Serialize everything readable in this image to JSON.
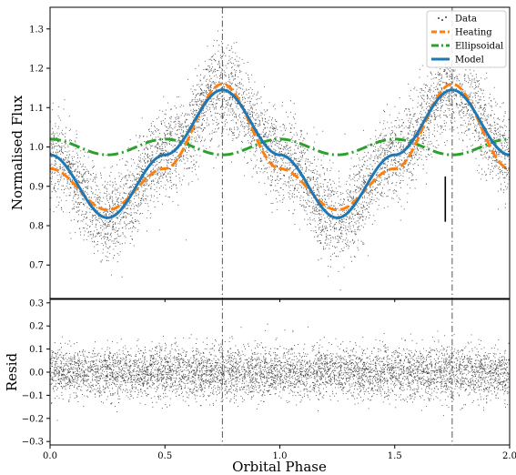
{
  "chart_data": [
    {
      "panel": "upper",
      "type": "scatter",
      "xlabel": "",
      "ylabel": "Normalised Flux",
      "xlim": [
        0.0,
        2.0
      ],
      "ylim": [
        0.615,
        1.355
      ],
      "x_ticks": [
        "0.0",
        "0.5",
        "1.0",
        "1.5",
        "2.0"
      ],
      "x_tick_labels_visible": false,
      "y_ticks": [
        "0.7",
        "0.8",
        "0.9",
        "1.0",
        "1.1",
        "1.2",
        "1.3"
      ],
      "legend": {
        "placement": "top-right",
        "entries": [
          {
            "label": "Data",
            "style": "points",
            "color": "#000000"
          },
          {
            "label": "Heating",
            "style": "dashed",
            "color": "#ff7f0e"
          },
          {
            "label": "Ellipsoidal",
            "style": "dashdot",
            "color": "#2ca02c"
          },
          {
            "label": "Model",
            "style": "solid",
            "color": "#1f77b4"
          }
        ]
      },
      "series": [
        {
          "name": "Data",
          "kind": "points",
          "color": "#000000",
          "description_curve": "scatter around Model with sigma 0.055",
          "x": [
            0.0,
            0.25,
            0.5,
            0.75,
            1.0,
            1.25,
            1.5,
            1.75,
            2.0
          ],
          "y": [
            0.98,
            0.82,
            0.98,
            1.145,
            0.98,
            0.82,
            0.98,
            1.145,
            0.98
          ]
        },
        {
          "name": "Heating",
          "kind": "line",
          "linestyle": "dashed",
          "color": "#ff7f0e",
          "x": [
            0.0,
            0.25,
            0.5,
            0.75,
            1.0,
            1.25,
            1.5,
            1.75,
            2.0
          ],
          "y": [
            0.945,
            0.84,
            0.945,
            1.16,
            0.945,
            0.84,
            0.945,
            1.16,
            0.945
          ]
        },
        {
          "name": "Ellipsoidal",
          "kind": "line",
          "linestyle": "dashdot",
          "color": "#2ca02c",
          "x": [
            0.0,
            0.25,
            0.5,
            0.75,
            1.0,
            1.25,
            1.5,
            1.75,
            2.0
          ],
          "y": [
            1.02,
            0.98,
            1.02,
            0.98,
            1.02,
            0.98,
            1.02,
            0.98,
            1.02
          ]
        },
        {
          "name": "Model",
          "kind": "line",
          "linestyle": "solid",
          "color": "#1f77b4",
          "x": [
            0.0,
            0.25,
            0.5,
            0.75,
            1.0,
            1.25,
            1.5,
            1.75,
            2.0
          ],
          "y": [
            0.98,
            0.82,
            0.98,
            1.145,
            0.98,
            0.82,
            0.98,
            1.145,
            0.98
          ]
        }
      ],
      "vertical_lines": [
        {
          "x": 0.75,
          "linestyle": "dashdot",
          "color": "#555555"
        },
        {
          "x": 1.75,
          "linestyle": "dashdot",
          "color": "#555555"
        }
      ],
      "error_bar": {
        "x": 1.72,
        "y_low": 0.81,
        "y_high": 0.925,
        "color": "#000000"
      }
    },
    {
      "panel": "lower",
      "type": "scatter",
      "xlabel": "Orbital Phase",
      "ylabel": "Resid",
      "xlim": [
        0.0,
        2.0
      ],
      "ylim": [
        -0.315,
        0.315
      ],
      "x_ticks": [
        "0.0",
        "0.5",
        "1.0",
        "1.5",
        "2.0"
      ],
      "y_ticks": [
        "-0.3",
        "-0.2",
        "-0.1",
        "0.0",
        "0.1",
        "0.2",
        "0.3"
      ],
      "series": [
        {
          "name": "Resid",
          "kind": "points",
          "color": "#000000",
          "description_curve": "scatter around 0 with sigma 0.055",
          "x": [
            0.0,
            2.0
          ],
          "y": [
            0.0,
            0.0
          ]
        }
      ]
    }
  ],
  "text": {
    "top_ylabel": "Normalised Flux",
    "bottom_ylabel": "Resid",
    "xlabel": "Orbital Phase",
    "legend_data": "Data",
    "legend_heating": "Heating",
    "legend_ellipsoidal": "Ellipsoidal",
    "legend_model": "Model"
  }
}
